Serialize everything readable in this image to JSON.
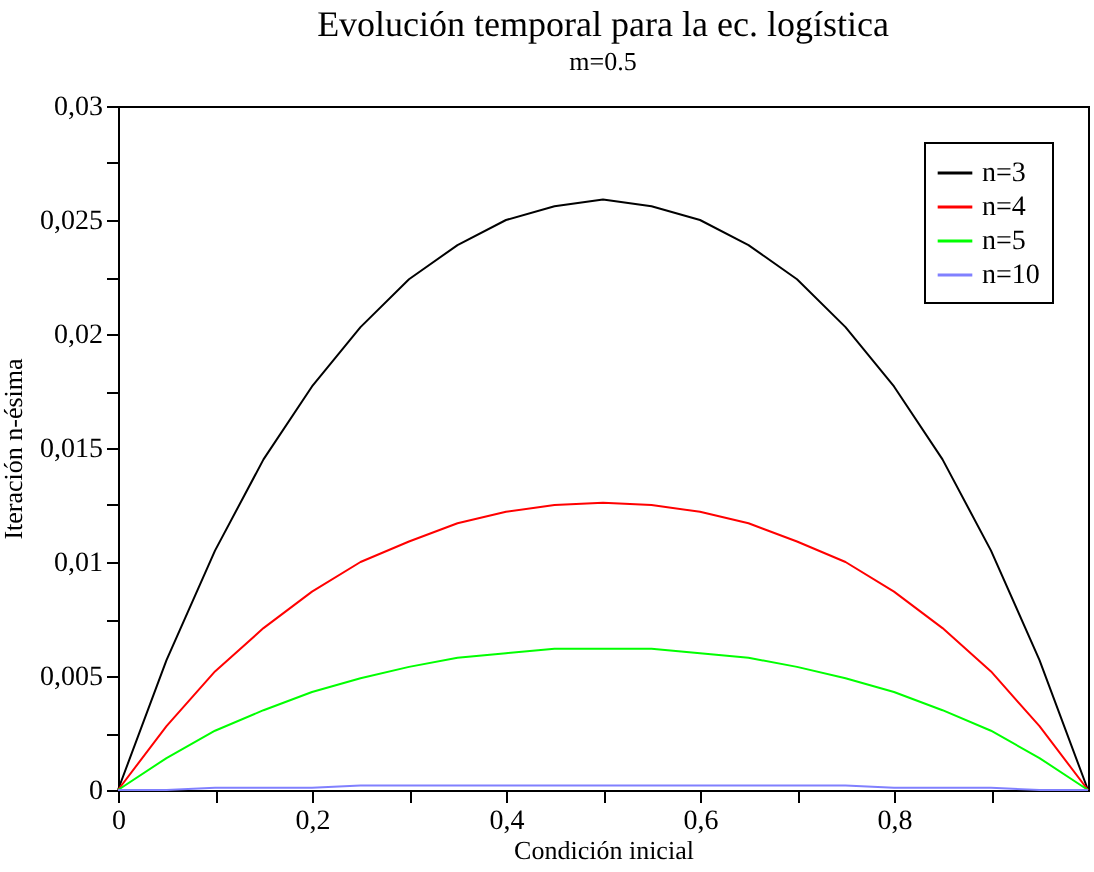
{
  "chart_data": {
    "type": "line",
    "title": "Evolución temporal para la ec. logística",
    "subtitle": "m=0.5",
    "xlabel": "Condición inicial",
    "ylabel": "Iteración n-ésima",
    "x": [
      0,
      0.05,
      0.1,
      0.15,
      0.2,
      0.25,
      0.3,
      0.35,
      0.4,
      0.45,
      0.5,
      0.55,
      0.6,
      0.65,
      0.7,
      0.75,
      0.8,
      0.85,
      0.9,
      0.95,
      1
    ],
    "series": [
      {
        "name": "n=3",
        "color": "#000000",
        "values": [
          0,
          0.0057,
          0.0105,
          0.0145,
          0.0177,
          0.0203,
          0.0224,
          0.0239,
          0.025,
          0.0256,
          0.0259,
          0.0256,
          0.025,
          0.0239,
          0.0224,
          0.0203,
          0.0177,
          0.0145,
          0.0105,
          0.0057,
          0
        ]
      },
      {
        "name": "n=4",
        "color": "#ff0000",
        "values": [
          0,
          0.0028,
          0.0052,
          0.0071,
          0.0087,
          0.01,
          0.0109,
          0.0117,
          0.0122,
          0.0125,
          0.0126,
          0.0125,
          0.0122,
          0.0117,
          0.0109,
          0.01,
          0.0087,
          0.0071,
          0.0052,
          0.0028,
          0
        ]
      },
      {
        "name": "n=5",
        "color": "#00ff00",
        "values": [
          0,
          0.0014,
          0.0026,
          0.0035,
          0.0043,
          0.0049,
          0.0054,
          0.0058,
          0.006,
          0.0062,
          0.0062,
          0.0062,
          0.006,
          0.0058,
          0.0054,
          0.0049,
          0.0043,
          0.0035,
          0.0026,
          0.0014,
          0
        ]
      },
      {
        "name": "n=10",
        "color": "#8080ff",
        "values": [
          0,
          0,
          0.0001,
          0.0001,
          0.0001,
          0.0002,
          0.0002,
          0.0002,
          0.0002,
          0.0002,
          0.0002,
          0.0002,
          0.0002,
          0.0002,
          0.0002,
          0.0002,
          0.0001,
          0.0001,
          0.0001,
          0,
          0
        ]
      }
    ],
    "xlim": [
      0,
      1
    ],
    "ylim": [
      0,
      0.03
    ],
    "xticks": [
      0,
      {
        "value": 0.1,
        "label": null
      },
      {
        "value": 0.2,
        "label": "0,2"
      },
      {
        "value": 0.3,
        "label": null
      },
      {
        "value": 0.4,
        "label": "0,4"
      },
      {
        "value": 0.5,
        "label": null
      },
      {
        "value": 0.6,
        "label": "0,6"
      },
      {
        "value": 0.7,
        "label": null
      },
      {
        "value": 0.8,
        "label": "0,8"
      },
      {
        "value": 0.9,
        "label": null
      }
    ],
    "yticks": [
      0,
      {
        "value": 0.0025,
        "label": null
      },
      {
        "value": 0.005,
        "label": "0,005"
      },
      {
        "value": 0.0075,
        "label": null
      },
      {
        "value": 0.01,
        "label": "0,01"
      },
      {
        "value": 0.0125,
        "label": null
      },
      {
        "value": 0.015,
        "label": "0,015"
      },
      {
        "value": 0.0175,
        "label": null
      },
      {
        "value": 0.02,
        "label": "0,02"
      },
      {
        "value": 0.0225,
        "label": null
      },
      {
        "value": 0.025,
        "label": "0,025"
      },
      {
        "value": 0.0275,
        "label": null
      },
      {
        "value": 0.03,
        "label": "0,03"
      }
    ],
    "grid": false,
    "legend": "top right",
    "marker": "none",
    "line_style": "solid"
  }
}
